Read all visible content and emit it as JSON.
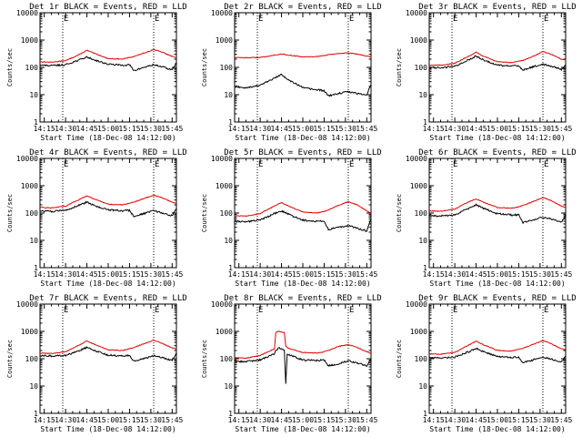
{
  "colors": {
    "events": "#000000",
    "lld": "#e00000",
    "axis": "#000000",
    "background": "#ffffff"
  },
  "shared": {
    "ylabel": "Counts/sec",
    "xlabel": "Start Time (18-Dec-08 14:12:00)",
    "x_tick_labels": [
      "14:15",
      "14:30",
      "14:45",
      "15:00",
      "15:15",
      "15:30",
      "15:45"
    ],
    "y_tick_labels": [
      "1",
      "10",
      "100",
      "1000",
      "10000"
    ],
    "marker_labels": [
      "E",
      "E"
    ]
  },
  "chart_data": [
    {
      "type": "line",
      "title": "Det 1r BLACK = Events, RED = LLD",
      "scale_y": "log",
      "xlim": [
        "14:12",
        "15:48"
      ],
      "ylim": [
        1,
        10000
      ],
      "markers_x": [
        "14:28",
        "15:32"
      ],
      "x": [
        "14:12",
        "14:20",
        "14:30",
        "14:40",
        "14:45",
        "14:50",
        "15:00",
        "15:10",
        "15:15",
        "15:18",
        "15:25",
        "15:32",
        "15:38",
        "15:45",
        "15:48"
      ],
      "series": [
        {
          "name": "LLD",
          "values": [
            160,
            155,
            175,
            300,
            420,
            330,
            210,
            200,
            230,
            250,
            330,
            450,
            360,
            250,
            230
          ]
        },
        {
          "name": "Events",
          "values": [
            120,
            115,
            125,
            190,
            240,
            190,
            130,
            120,
            125,
            75,
            100,
            125,
            105,
            80,
            150
          ]
        }
      ]
    },
    {
      "type": "line",
      "title": "Det 2r BLACK = Events, RED = LLD",
      "scale_y": "log",
      "xlim": [
        "14:12",
        "15:48"
      ],
      "ylim": [
        1,
        10000
      ],
      "markers_x": [
        "14:28",
        "15:32"
      ],
      "x": [
        "14:12",
        "14:20",
        "14:30",
        "14:40",
        "14:45",
        "14:50",
        "15:00",
        "15:10",
        "15:15",
        "15:18",
        "15:25",
        "15:32",
        "15:38",
        "15:45",
        "15:48"
      ],
      "series": [
        {
          "name": "LLD",
          "values": [
            230,
            225,
            230,
            280,
            310,
            280,
            240,
            250,
            270,
            290,
            320,
            340,
            310,
            260,
            240
          ]
        },
        {
          "name": "Events",
          "values": [
            20,
            18,
            22,
            40,
            55,
            35,
            18,
            15,
            14,
            9,
            11,
            13,
            11,
            10,
            25
          ]
        }
      ]
    },
    {
      "type": "line",
      "title": "Det 3r BLACK = Events, RED = LLD",
      "scale_y": "log",
      "xlim": [
        "14:12",
        "15:48"
      ],
      "ylim": [
        1,
        10000
      ],
      "markers_x": [
        "14:28",
        "15:32"
      ],
      "x": [
        "14:12",
        "14:20",
        "14:30",
        "14:40",
        "14:45",
        "14:50",
        "15:00",
        "15:10",
        "15:15",
        "15:18",
        "15:25",
        "15:32",
        "15:38",
        "15:45",
        "15:48"
      ],
      "series": [
        {
          "name": "LLD",
          "values": [
            120,
            120,
            140,
            260,
            360,
            260,
            160,
            150,
            170,
            180,
            250,
            380,
            300,
            200,
            190
          ]
        },
        {
          "name": "Events",
          "values": [
            100,
            95,
            110,
            190,
            260,
            190,
            120,
            110,
            115,
            80,
            105,
            130,
            110,
            85,
            120
          ]
        }
      ]
    },
    {
      "type": "line",
      "title": "Det 4r BLACK = Events, RED = LLD",
      "scale_y": "log",
      "xlim": [
        "14:12",
        "15:48"
      ],
      "ylim": [
        1,
        10000
      ],
      "markers_x": [
        "14:28",
        "15:32"
      ],
      "x": [
        "14:12",
        "14:20",
        "14:30",
        "14:40",
        "14:45",
        "14:50",
        "15:00",
        "15:10",
        "15:15",
        "15:18",
        "15:25",
        "15:32",
        "15:38",
        "15:45",
        "15:48"
      ],
      "series": [
        {
          "name": "LLD",
          "values": [
            160,
            155,
            180,
            320,
            430,
            330,
            210,
            200,
            230,
            250,
            340,
            450,
            360,
            250,
            230
          ]
        },
        {
          "name": "Events",
          "values": [
            120,
            115,
            125,
            200,
            250,
            190,
            130,
            120,
            125,
            75,
            95,
            120,
            100,
            80,
            150
          ]
        }
      ]
    },
    {
      "type": "line",
      "title": "Det 5r BLACK = Events, RED = LLD",
      "scale_y": "log",
      "xlim": [
        "14:12",
        "15:48"
      ],
      "ylim": [
        1,
        10000
      ],
      "markers_x": [
        "14:28",
        "15:32"
      ],
      "x": [
        "14:12",
        "14:20",
        "14:30",
        "14:40",
        "14:45",
        "14:50",
        "15:00",
        "15:10",
        "15:15",
        "15:18",
        "15:25",
        "15:32",
        "15:38",
        "15:45",
        "15:48"
      ],
      "series": [
        {
          "name": "LLD",
          "values": [
            80,
            78,
            95,
            180,
            240,
            180,
            110,
            100,
            115,
            130,
            190,
            260,
            200,
            120,
            100
          ]
        },
        {
          "name": "Events",
          "values": [
            50,
            48,
            55,
            95,
            120,
            90,
            55,
            50,
            50,
            25,
            30,
            35,
            28,
            22,
            60
          ]
        }
      ]
    },
    {
      "type": "line",
      "title": "Det 6r BLACK = Events, RED = LLD",
      "scale_y": "log",
      "xlim": [
        "14:12",
        "15:48"
      ],
      "ylim": [
        1,
        10000
      ],
      "markers_x": [
        "14:28",
        "15:32"
      ],
      "x": [
        "14:12",
        "14:20",
        "14:30",
        "14:40",
        "14:45",
        "14:50",
        "15:00",
        "15:10",
        "15:15",
        "15:18",
        "15:25",
        "15:32",
        "15:38",
        "15:45",
        "15:48"
      ],
      "series": [
        {
          "name": "LLD",
          "values": [
            120,
            115,
            140,
            260,
            330,
            250,
            160,
            150,
            170,
            190,
            260,
            370,
            280,
            180,
            160
          ]
        },
        {
          "name": "Events",
          "values": [
            80,
            78,
            85,
            150,
            200,
            150,
            95,
            85,
            85,
            45,
            55,
            70,
            60,
            45,
            90
          ]
        }
      ]
    },
    {
      "type": "line",
      "title": "Det 7r BLACK = Events, RED = LLD",
      "scale_y": "log",
      "xlim": [
        "14:12",
        "15:48"
      ],
      "ylim": [
        1,
        10000
      ],
      "markers_x": [
        "14:28",
        "15:32"
      ],
      "x": [
        "14:12",
        "14:20",
        "14:30",
        "14:40",
        "14:45",
        "14:50",
        "15:00",
        "15:10",
        "15:15",
        "15:18",
        "15:25",
        "15:32",
        "15:38",
        "15:45",
        "15:48"
      ],
      "series": [
        {
          "name": "LLD",
          "values": [
            160,
            155,
            180,
            320,
            450,
            340,
            210,
            200,
            230,
            260,
            350,
            480,
            360,
            250,
            230
          ]
        },
        {
          "name": "Events",
          "values": [
            130,
            125,
            130,
            200,
            260,
            200,
            135,
            125,
            130,
            80,
            100,
            130,
            110,
            85,
            160
          ]
        }
      ]
    },
    {
      "type": "line",
      "title": "Det 8r BLACK = Events, RED = LLD",
      "scale_y": "log",
      "xlim": [
        "14:12",
        "15:48"
      ],
      "ylim": [
        1,
        10000
      ],
      "markers_x": [
        "14:28",
        "15:32"
      ],
      "x": [
        "14:12",
        "14:20",
        "14:30",
        "14:40",
        "14:41",
        "14:43",
        "14:45",
        "14:47",
        "14:48",
        "14:49",
        "14:50",
        "15:00",
        "15:10",
        "15:15",
        "15:18",
        "15:25",
        "15:32",
        "15:38",
        "15:45",
        "15:48"
      ],
      "series": [
        {
          "name": "LLD",
          "values": [
            110,
            105,
            130,
            230,
            900,
            1000,
            950,
            900,
            300,
            250,
            240,
            170,
            160,
            180,
            200,
            280,
            330,
            260,
            180,
            160
          ]
        },
        {
          "name": "Events",
          "values": [
            80,
            78,
            90,
            150,
            200,
            250,
            230,
            200,
            12,
            150,
            140,
            90,
            85,
            90,
            55,
            65,
            85,
            70,
            55,
            100
          ]
        }
      ]
    },
    {
      "type": "line",
      "title": "Det 9r BLACK = Events, RED = LLD",
      "scale_y": "log",
      "xlim": [
        "14:12",
        "15:48"
      ],
      "ylim": [
        1,
        10000
      ],
      "markers_x": [
        "14:28",
        "15:32"
      ],
      "x": [
        "14:12",
        "14:20",
        "14:30",
        "14:40",
        "14:45",
        "14:50",
        "15:00",
        "15:10",
        "15:15",
        "15:18",
        "15:25",
        "15:32",
        "15:38",
        "15:45",
        "15:48"
      ],
      "series": [
        {
          "name": "LLD",
          "values": [
            150,
            145,
            170,
            320,
            440,
            330,
            200,
            190,
            220,
            240,
            330,
            460,
            350,
            230,
            210
          ]
        },
        {
          "name": "Events",
          "values": [
            110,
            105,
            115,
            180,
            240,
            180,
            120,
            110,
            115,
            70,
            90,
            115,
            95,
            75,
            130
          ]
        }
      ]
    }
  ]
}
